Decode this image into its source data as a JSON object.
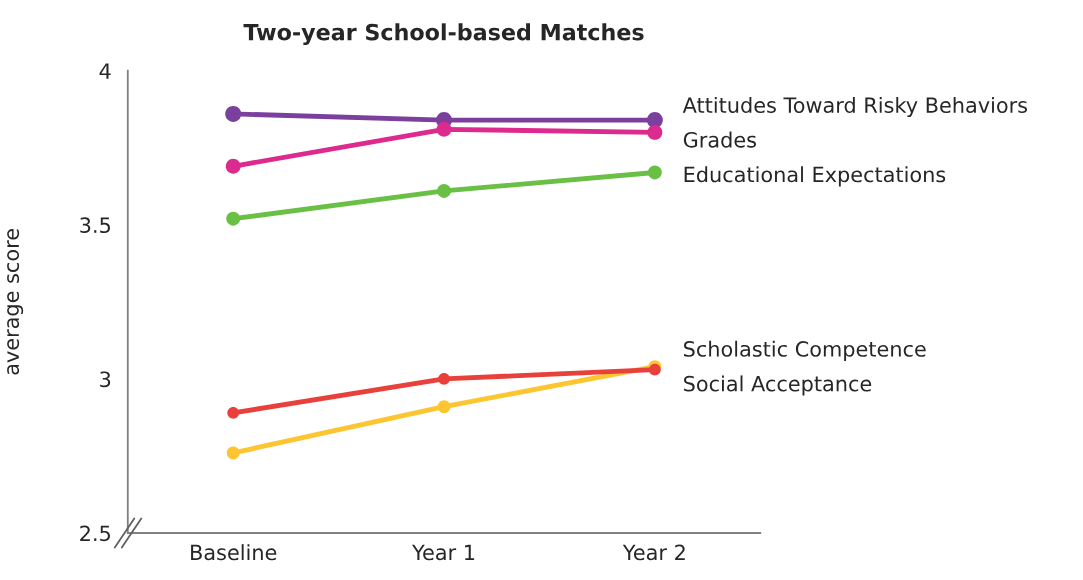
{
  "chart_data": {
    "type": "line",
    "title": "Two-year School-based Matches",
    "ylabel": "average score",
    "categories": [
      "Baseline",
      "Year 1",
      "Year 2"
    ],
    "series": [
      {
        "name": "Attitudes Toward Risky Behaviors",
        "color": "#7b3f9e",
        "values": [
          3.86,
          3.84,
          3.84
        ]
      },
      {
        "name": "Grades",
        "color": "#dc2a8f",
        "values": [
          3.69,
          3.81,
          3.8
        ]
      },
      {
        "name": "Educational Expectations",
        "color": "#6abf45",
        "values": [
          3.52,
          3.61,
          3.67
        ]
      },
      {
        "name": "Scholastic Competence",
        "color": "#fdc530",
        "values": [
          2.76,
          2.91,
          3.04
        ]
      },
      {
        "name": "Social Acceptance",
        "color": "#e8403a",
        "values": [
          2.89,
          3.0,
          3.03
        ]
      }
    ],
    "ylim": [
      2.5,
      4
    ],
    "yticks": [
      2.5,
      3,
      3.5,
      4
    ],
    "grid": false,
    "legend": false,
    "marker": "circle",
    "line_style": "solid"
  }
}
